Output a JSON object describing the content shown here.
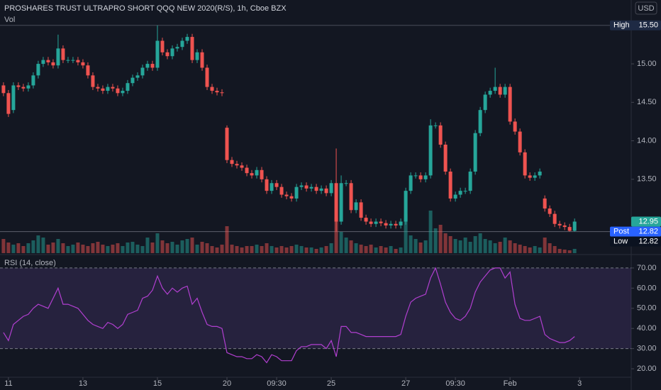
{
  "chart_data": {
    "type": "candlestick",
    "title": "PROSHARES TRUST ULTRAPRO SHORT QQQ NEW 2020(R/S), 1h, Cboe BZX",
    "currency": "USD",
    "up_color": "#26a69a",
    "down_color": "#ef5350",
    "xlim": [
      -0.7,
      126.4
    ],
    "xticks": [
      {
        "value": 1,
        "label": "11"
      },
      {
        "value": 16,
        "label": "13"
      },
      {
        "value": 31,
        "label": "15"
      },
      {
        "value": 45,
        "label": "20"
      },
      {
        "value": 55,
        "label": "09:30"
      },
      {
        "value": 66,
        "label": "25"
      },
      {
        "value": 81,
        "label": "27"
      },
      {
        "value": 91,
        "label": "09:30"
      },
      {
        "value": 102,
        "label": "Feb"
      },
      {
        "value": 116,
        "label": "3"
      }
    ],
    "ylim": [
      12.54,
      15.83
    ],
    "yticks": [
      {
        "value": 15,
        "label": "15.00"
      },
      {
        "value": 14.5,
        "label": "14.50"
      },
      {
        "value": 14,
        "label": "14.00"
      },
      {
        "value": 13.5,
        "label": "13.50"
      }
    ],
    "open": [
      14.72,
      14.62,
      14.4,
      14.72,
      14.7,
      14.68,
      14.72,
      14.85,
      15.0,
      15.05,
      15.02,
      14.98,
      15.2,
      15.05,
      15.05,
      15.05,
      15.02,
      14.98,
      14.85,
      14.7,
      14.68,
      14.65,
      14.7,
      14.68,
      14.62,
      14.65,
      14.75,
      14.82,
      14.85,
      14.95,
      15.0,
      14.95,
      15.3,
      15.15,
      15.1,
      15.2,
      15.22,
      15.3,
      15.35,
      15.05,
      15.15,
      14.95,
      14.7,
      14.65,
      14.63,
      14.17,
      13.75,
      13.7,
      13.68,
      13.65,
      13.58,
      13.55,
      13.62,
      13.5,
      13.35,
      13.45,
      13.4,
      13.3,
      13.28,
      13.25,
      13.4,
      13.42,
      13.38,
      13.4,
      13.35,
      13.38,
      13.32,
      13.45,
      12.95,
      13.45,
      13.45,
      13.1,
      13.2,
      13.0,
      12.95,
      12.92,
      12.95,
      12.93,
      12.9,
      12.92,
      12.9,
      12.95,
      13.35,
      13.55,
      13.55,
      13.5,
      13.55,
      14.2,
      14.2,
      13.95,
      13.6,
      13.25,
      13.3,
      13.35,
      13.35,
      13.6,
      14.1,
      14.4,
      14.6,
      14.65,
      14.7,
      14.6,
      14.7,
      14.25,
      14.12,
      13.85,
      13.55,
      13.52,
      13.55,
      13.25,
      13.12,
      13.05,
      12.92,
      12.9,
      12.88,
      12.83
    ],
    "high": [
      14.76,
      14.66,
      14.76,
      14.76,
      14.74,
      14.76,
      14.89,
      15.04,
      15.09,
      15.09,
      15.06,
      15.38,
      15.24,
      15.09,
      15.09,
      15.09,
      15.06,
      15.02,
      14.89,
      14.74,
      14.72,
      14.74,
      14.74,
      14.72,
      14.69,
      14.79,
      14.86,
      14.89,
      14.99,
      15.04,
      15.04,
      15.5,
      15.34,
      15.19,
      15.24,
      15.26,
      15.34,
      15.39,
      15.39,
      15.19,
      15.19,
      14.99,
      14.74,
      14.69,
      14.67,
      14.2,
      13.79,
      13.74,
      13.72,
      13.69,
      13.62,
      13.66,
      13.66,
      13.54,
      13.49,
      13.49,
      13.44,
      13.34,
      13.32,
      13.44,
      13.46,
      13.46,
      13.44,
      13.44,
      13.42,
      13.42,
      13.49,
      13.9,
      13.55,
      13.49,
      13.49,
      13.24,
      13.24,
      13.04,
      12.99,
      12.99,
      12.99,
      12.97,
      12.96,
      12.96,
      12.99,
      13.39,
      13.59,
      13.59,
      13.59,
      13.59,
      14.28,
      14.24,
      14.24,
      13.99,
      13.64,
      13.34,
      13.39,
      13.39,
      13.64,
      14.14,
      14.44,
      14.64,
      14.69,
      14.95,
      14.74,
      14.74,
      14.74,
      14.29,
      14.16,
      13.89,
      13.59,
      13.59,
      13.64,
      13.29,
      13.16,
      13.09,
      12.96,
      12.94,
      12.92,
      12.99
    ],
    "low": [
      14.58,
      14.31,
      14.36,
      14.66,
      14.64,
      14.64,
      14.68,
      14.81,
      14.96,
      14.98,
      14.94,
      14.94,
      15.01,
      15.01,
      15.01,
      14.98,
      14.94,
      14.81,
      14.66,
      14.64,
      14.61,
      14.61,
      14.64,
      14.58,
      14.58,
      14.61,
      14.71,
      14.78,
      14.81,
      14.91,
      14.91,
      14.91,
      15.11,
      15.06,
      15.06,
      15.16,
      15.18,
      15.26,
      15.01,
      15.01,
      14.91,
      14.66,
      14.61,
      14.59,
      14.58,
      13.71,
      13.66,
      13.64,
      13.61,
      13.54,
      13.51,
      13.51,
      13.46,
      13.31,
      13.31,
      13.36,
      13.26,
      13.24,
      13.21,
      13.21,
      13.36,
      13.34,
      13.34,
      13.31,
      13.31,
      13.28,
      13.28,
      12.82,
      12.91,
      13.41,
      13.06,
      13.06,
      12.96,
      12.91,
      12.88,
      12.88,
      12.89,
      12.86,
      12.86,
      12.86,
      12.86,
      12.91,
      13.31,
      13.51,
      13.46,
      13.46,
      13.51,
      14.16,
      13.91,
      13.56,
      13.21,
      13.21,
      13.26,
      13.31,
      13.31,
      13.56,
      14.06,
      14.36,
      14.56,
      14.61,
      14.56,
      14.56,
      14.21,
      14.08,
      13.81,
      13.51,
      13.48,
      13.48,
      13.51,
      13.08,
      13.01,
      12.88,
      12.86,
      12.84,
      12.82,
      12.82
    ],
    "close": [
      14.62,
      14.35,
      14.72,
      14.7,
      14.68,
      14.72,
      14.85,
      15.0,
      15.05,
      15.02,
      14.98,
      15.2,
      15.05,
      15.05,
      15.05,
      15.02,
      14.98,
      14.85,
      14.7,
      14.68,
      14.65,
      14.7,
      14.68,
      14.62,
      14.65,
      14.75,
      14.82,
      14.85,
      14.95,
      15.0,
      14.95,
      15.3,
      15.15,
      15.1,
      15.2,
      15.22,
      15.3,
      15.35,
      15.05,
      15.15,
      14.95,
      14.7,
      14.65,
      14.63,
      14.62,
      13.75,
      13.7,
      13.68,
      13.65,
      13.58,
      13.55,
      13.62,
      13.5,
      13.35,
      13.45,
      13.4,
      13.3,
      13.28,
      13.25,
      13.4,
      13.42,
      13.38,
      13.4,
      13.35,
      13.38,
      13.32,
      13.45,
      12.95,
      13.45,
      13.45,
      13.1,
      13.2,
      13.0,
      12.95,
      12.92,
      12.95,
      12.93,
      12.9,
      12.92,
      12.9,
      12.95,
      13.35,
      13.55,
      13.55,
      13.5,
      13.55,
      14.2,
      14.2,
      13.95,
      13.6,
      13.25,
      13.3,
      13.35,
      13.35,
      13.6,
      14.1,
      14.4,
      14.6,
      14.65,
      14.7,
      14.6,
      14.7,
      14.25,
      14.12,
      13.85,
      13.55,
      13.52,
      13.55,
      13.6,
      13.12,
      13.05,
      12.92,
      12.9,
      12.88,
      12.83,
      12.95
    ],
    "volume": {
      "title": "Vol",
      "ylim": [
        0,
        60
      ],
      "values": [
        20,
        15,
        12,
        14,
        10,
        14,
        18,
        25,
        22,
        12,
        15,
        20,
        14,
        10,
        12,
        15,
        12,
        10,
        14,
        16,
        12,
        10,
        12,
        14,
        10,
        15,
        16,
        12,
        10,
        22,
        15,
        28,
        18,
        14,
        16,
        12,
        18,
        20,
        22,
        12,
        16,
        14,
        10,
        8,
        12,
        38,
        12,
        10,
        8,
        10,
        10,
        12,
        10,
        14,
        10,
        8,
        10,
        8,
        10,
        12,
        10,
        8,
        8,
        6,
        8,
        10,
        14,
        50,
        30,
        22,
        18,
        14,
        12,
        10,
        12,
        8,
        10,
        8,
        10,
        6,
        8,
        55,
        25,
        20,
        15,
        18,
        60,
        35,
        40,
        28,
        24,
        20,
        18,
        22,
        16,
        24,
        28,
        20,
        18,
        14,
        16,
        22,
        18,
        14,
        12,
        10,
        8,
        10,
        8,
        22,
        14,
        10,
        6,
        5,
        4,
        6
      ]
    },
    "markers": {
      "high": {
        "name": "High",
        "value": 15.5,
        "label": "15.50"
      },
      "last": {
        "value": 12.95,
        "color": "#26a69a"
      },
      "post": {
        "name": "Post",
        "value": 12.82,
        "color": "#2962ff"
      },
      "low": {
        "name": "Low",
        "value": 12.82
      }
    },
    "rsi": {
      "title": "RSI (14, close)",
      "color": "#b13fd0",
      "ylim": [
        15.8,
        75.6
      ],
      "yticks": [
        {
          "value": 70,
          "label": "70.00"
        },
        {
          "value": 60,
          "label": "60.00"
        },
        {
          "value": 50,
          "label": "50.00"
        },
        {
          "value": 40,
          "label": "40.00"
        },
        {
          "value": 30,
          "label": "30.00"
        },
        {
          "value": 20,
          "label": "20.00"
        }
      ],
      "bands": [
        30,
        70
      ],
      "values": [
        38,
        34,
        42,
        44,
        46,
        47,
        50,
        52,
        51,
        50,
        55,
        60,
        52,
        52,
        51,
        50,
        47,
        44,
        42,
        41,
        40,
        43,
        42,
        40,
        42,
        47,
        48,
        49,
        55,
        56,
        59,
        66,
        60,
        57,
        60,
        58,
        60,
        61,
        52,
        55,
        48,
        42,
        41,
        41,
        40,
        28,
        27,
        26,
        26,
        25,
        25,
        27,
        26,
        23,
        27,
        26,
        24,
        24,
        24,
        29,
        31,
        31,
        32,
        32,
        32,
        30,
        34,
        26,
        41,
        41,
        38,
        38,
        37,
        36,
        36,
        36,
        36,
        36,
        36,
        36,
        37,
        46,
        53,
        55,
        56,
        57,
        65,
        70,
        62,
        53,
        48,
        45,
        44,
        46,
        50,
        58,
        63,
        66,
        69,
        70,
        70,
        65,
        68,
        52,
        45,
        44,
        44,
        45,
        46,
        37,
        35,
        34,
        33,
        33,
        34,
        36
      ]
    }
  }
}
